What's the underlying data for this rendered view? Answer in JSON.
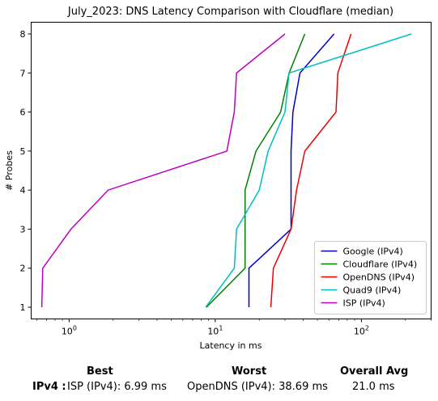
{
  "chart_data": {
    "type": "line",
    "title": "July_2023: DNS Latency Comparison with Cloudflare (median)",
    "xlabel": "Latency in ms",
    "ylabel": "# Probes",
    "xscale": "log",
    "xlim": [
      0.55,
      300
    ],
    "ylim": [
      0.7,
      8.3
    ],
    "x_ticks": [
      {
        "value": 1,
        "base": "10",
        "exp": "0"
      },
      {
        "value": 10,
        "base": "10",
        "exp": "1"
      },
      {
        "value": 100,
        "base": "10",
        "exp": "2"
      }
    ],
    "y_ticks": [
      1,
      2,
      3,
      4,
      5,
      6,
      7,
      8
    ],
    "grid": false,
    "legend_position": "lower-right",
    "series": [
      {
        "name": "Google (IPv4)",
        "color": "#0000cc",
        "points": [
          [
            17,
            1
          ],
          [
            17,
            2
          ],
          [
            33,
            3
          ],
          [
            33,
            4
          ],
          [
            33,
            5
          ],
          [
            34,
            6
          ],
          [
            38,
            7
          ],
          [
            65,
            8
          ]
        ]
      },
      {
        "name": "Cloudflare (IPv4)",
        "color": "#008000",
        "points": [
          [
            8.7,
            1
          ],
          [
            16,
            2
          ],
          [
            16,
            3
          ],
          [
            16,
            4
          ],
          [
            19,
            5
          ],
          [
            28,
            6
          ],
          [
            32,
            7
          ],
          [
            41,
            8
          ]
        ]
      },
      {
        "name": "OpenDNS (IPv4)",
        "color": "#ee0000",
        "points": [
          [
            24,
            1
          ],
          [
            25,
            2
          ],
          [
            33,
            3
          ],
          [
            36,
            4
          ],
          [
            41,
            5
          ],
          [
            67,
            6
          ],
          [
            69,
            7
          ],
          [
            85,
            8
          ]
        ]
      },
      {
        "name": "Quad9 (IPv4)",
        "color": "#00bfbf",
        "points": [
          [
            8.6,
            1
          ],
          [
            13.5,
            2
          ],
          [
            14,
            3
          ],
          [
            20,
            4
          ],
          [
            23,
            5
          ],
          [
            30,
            6
          ],
          [
            32,
            7
          ],
          [
            220,
            8
          ]
        ]
      },
      {
        "name": "ISP (IPv4)",
        "color": "#bf00bf",
        "points": [
          [
            0.65,
            1
          ],
          [
            0.66,
            2
          ],
          [
            1.03,
            3
          ],
          [
            1.85,
            4
          ],
          [
            12,
            5
          ],
          [
            13.5,
            6
          ],
          [
            14,
            7
          ],
          [
            30,
            8
          ]
        ]
      }
    ]
  },
  "summary": {
    "best_header": "Best",
    "worst_header": "Worst",
    "avg_header": "Overall Avg",
    "row_label": "IPv4 :",
    "best_value": "ISP (IPv4): 6.99 ms",
    "worst_value": "OpenDNS (IPv4): 38.69 ms",
    "avg_value": "21.0 ms"
  }
}
